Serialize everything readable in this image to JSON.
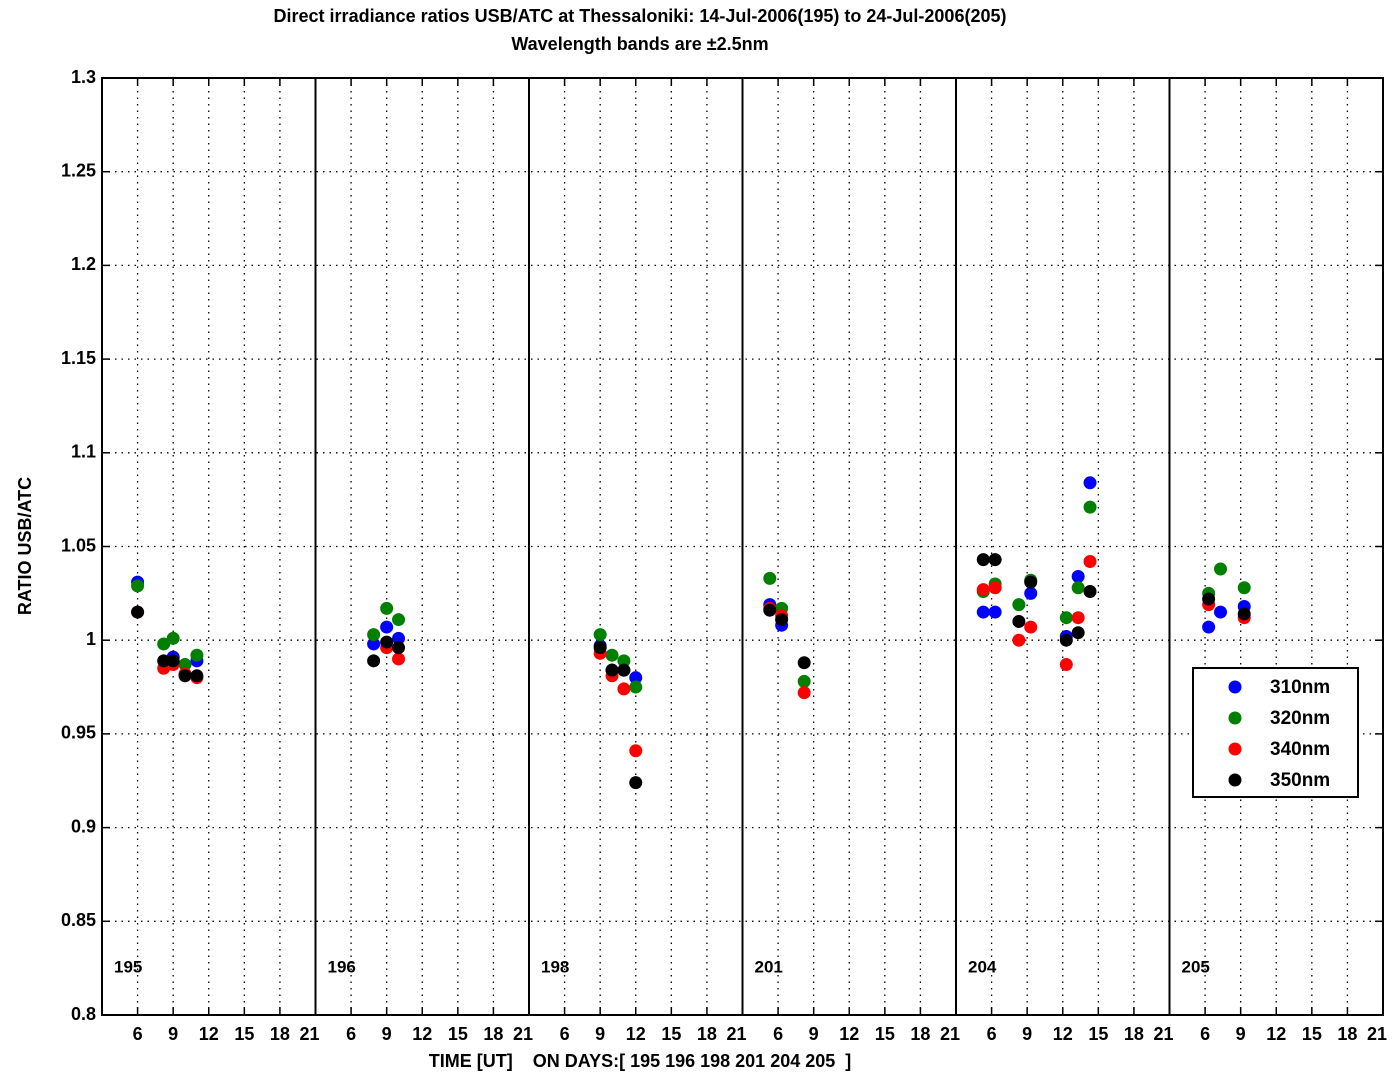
{
  "chart_data": {
    "type": "scatter",
    "title": "Direct irradiance ratios USB/ATC at Thessaloniki: 14-Jul-2006(195) to 24-Jul-2006(205)",
    "subtitle": "Wavelength bands are ±2.5nm",
    "x_label": "TIME [UT]    ON DAYS:[ 195 196 198 201 204 205  ]",
    "y_label": "RATIO USB/ATC",
    "panels": [
      "195",
      "196",
      "198",
      "201",
      "204",
      "205"
    ],
    "xlim": [
      3,
      21
    ],
    "xticks": [
      6,
      9,
      12,
      15,
      18,
      21
    ],
    "ylim": [
      0.8,
      1.3
    ],
    "yticks": [
      0.8,
      0.85,
      0.9,
      0.95,
      1,
      1.05,
      1.1,
      1.15,
      1.2,
      1.25,
      1.3
    ],
    "grid": true,
    "legend": "right",
    "series": [
      {
        "name": "310nm",
        "color": "#0000ff",
        "panels": [
          {
            "x": [
              6,
              9,
              11
            ],
            "values": [
              1.031,
              0.991,
              0.989
            ]
          },
          {
            "x": [
              7.9,
              9,
              10
            ],
            "values": [
              0.998,
              1.007,
              1.001
            ]
          },
          {
            "x": [
              9,
              10,
              11,
              12
            ],
            "values": [
              0.997,
              0.984,
              0.984,
              0.98
            ]
          },
          {
            "x": [
              5.3,
              6.3
            ],
            "values": [
              1.019,
              1.008
            ]
          },
          {
            "x": [
              5.3,
              6.3,
              9.3,
              12.3,
              13.3,
              14.3
            ],
            "values": [
              1.015,
              1.015,
              1.025,
              1.002,
              1.034,
              1.084
            ]
          },
          {
            "x": [
              6.3,
              7.3,
              9.3
            ],
            "values": [
              1.007,
              1.015,
              1.018
            ]
          }
        ]
      },
      {
        "name": "320nm",
        "color": "#008000",
        "panels": [
          {
            "x": [
              6,
              8.2,
              9,
              10,
              11
            ],
            "values": [
              1.029,
              0.998,
              1.001,
              0.987,
              0.992
            ]
          },
          {
            "x": [
              7.9,
              9,
              10
            ],
            "values": [
              1.003,
              1.017,
              1.011
            ]
          },
          {
            "x": [
              9,
              10,
              11,
              12
            ],
            "values": [
              1.003,
              0.992,
              0.989,
              0.975
            ]
          },
          {
            "x": [
              5.3,
              6.3,
              8.2
            ],
            "values": [
              1.033,
              1.017,
              0.978
            ]
          },
          {
            "x": [
              5.3,
              6.3,
              8.3,
              9.3,
              12.3,
              13.3,
              14.3
            ],
            "values": [
              1.026,
              1.03,
              1.019,
              1.032,
              1.012,
              1.028,
              1.071
            ]
          },
          {
            "x": [
              6.3,
              7.3,
              9.3
            ],
            "values": [
              1.025,
              1.038,
              1.028
            ]
          }
        ]
      },
      {
        "name": "340nm",
        "color": "#ff0000",
        "panels": [
          {
            "x": [
              6,
              8.2,
              9,
              10,
              11
            ],
            "values": [
              1.015,
              0.985,
              0.987,
              0.982,
              0.98
            ]
          },
          {
            "x": [
              9,
              10
            ],
            "values": [
              0.996,
              0.99
            ]
          },
          {
            "x": [
              9,
              10,
              11,
              12
            ],
            "values": [
              0.993,
              0.981,
              0.974,
              0.941
            ]
          },
          {
            "x": [
              5.3,
              6.3,
              8.2
            ],
            "values": [
              1.017,
              1.013,
              0.972
            ]
          },
          {
            "x": [
              5.3,
              6.3,
              8.3,
              9.3,
              12.3,
              13.3,
              14.3
            ],
            "values": [
              1.027,
              1.028,
              1.0,
              1.007,
              0.987,
              1.012,
              1.042
            ]
          },
          {
            "x": [
              6.3,
              9.3
            ],
            "values": [
              1.019,
              1.012
            ]
          }
        ]
      },
      {
        "name": "350nm",
        "color": "#000000",
        "panels": [
          {
            "x": [
              6,
              8.2,
              9,
              10,
              11
            ],
            "values": [
              1.015,
              0.989,
              0.989,
              0.981,
              0.981
            ]
          },
          {
            "x": [
              7.9,
              9,
              10
            ],
            "values": [
              0.989,
              0.999,
              0.996
            ]
          },
          {
            "x": [
              9,
              10,
              11,
              12
            ],
            "values": [
              0.996,
              0.984,
              0.984,
              0.924
            ]
          },
          {
            "x": [
              5.3,
              6.3,
              8.2
            ],
            "values": [
              1.016,
              1.011,
              0.988
            ]
          },
          {
            "x": [
              5.3,
              6.3,
              8.3,
              9.3,
              12.3,
              13.3,
              14.3
            ],
            "values": [
              1.043,
              1.043,
              1.01,
              1.031,
              1.0,
              1.004,
              1.026
            ]
          },
          {
            "x": [
              6.3,
              9.3
            ],
            "values": [
              1.022,
              1.014
            ]
          }
        ]
      }
    ]
  }
}
